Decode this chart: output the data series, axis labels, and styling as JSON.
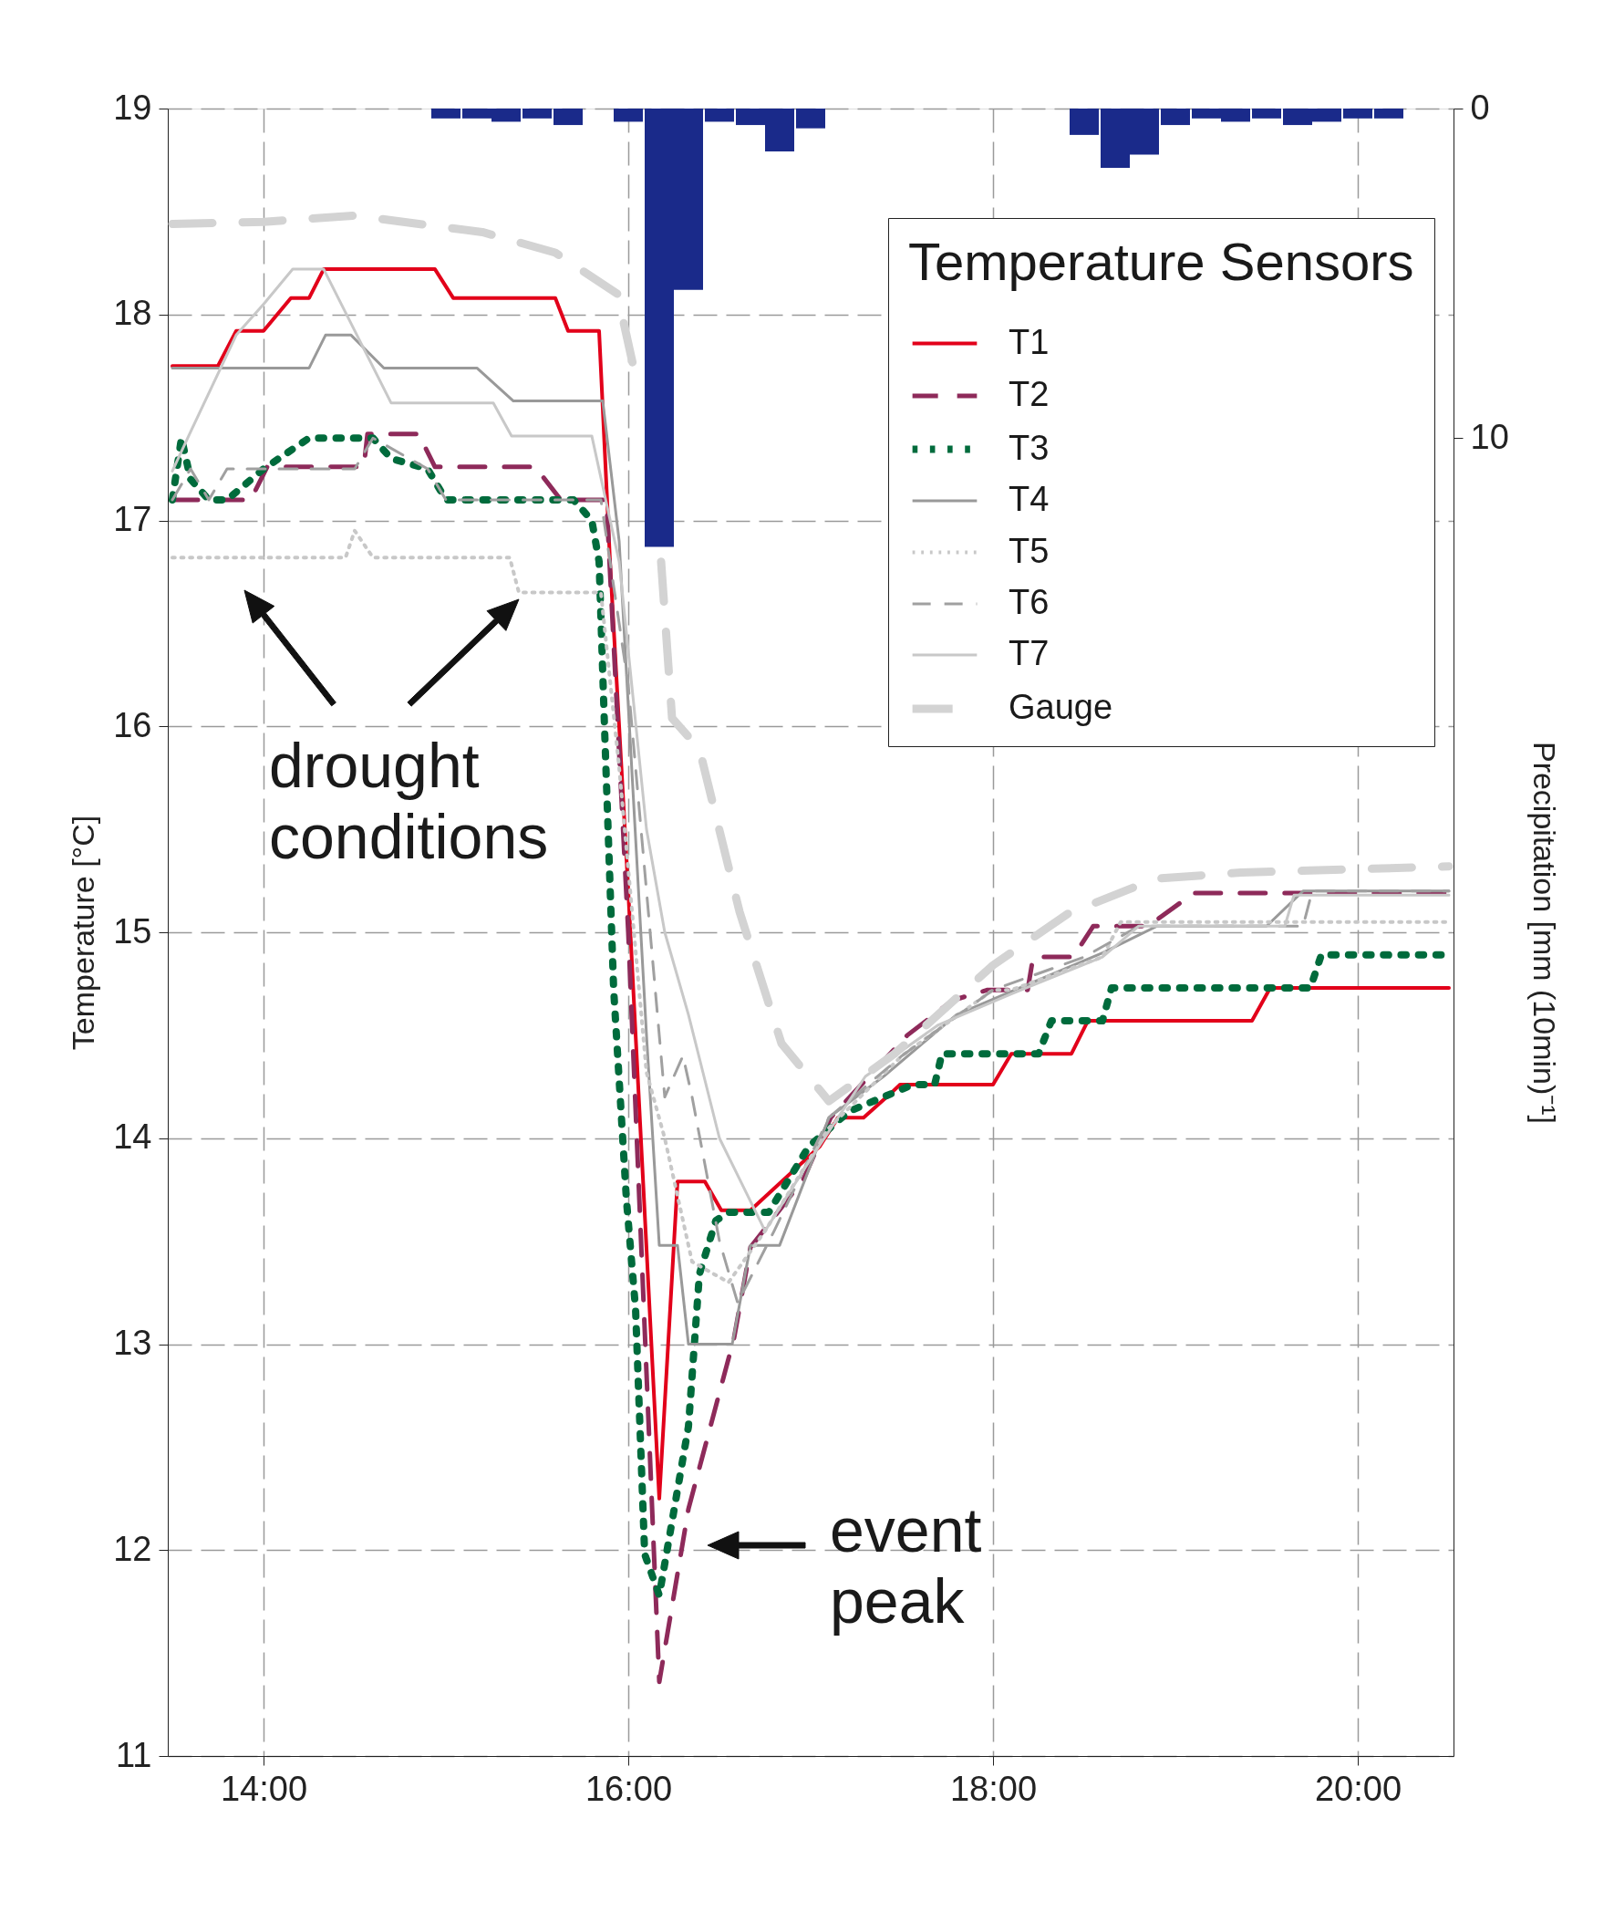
{
  "chart_data": {
    "type": "line",
    "legend_title": "Temperature Sensors",
    "ylabel": "Temperature [°C]",
    "y2label": "Precipitation [mm (10min)⁻¹]",
    "xlim": [
      13.5,
      20.5
    ],
    "xticks": [
      {
        "value": 14,
        "label": "14:00"
      },
      {
        "value": 16,
        "label": "16:00"
      },
      {
        "value": 18,
        "label": "18:00"
      },
      {
        "value": 20,
        "label": "20:00"
      }
    ],
    "ylim": [
      11,
      19
    ],
    "yticks": [
      11,
      12,
      13,
      14,
      15,
      16,
      17,
      18,
      19
    ],
    "y2lim": [
      50,
      0
    ],
    "y2ticks": [
      0,
      10
    ],
    "grid": true,
    "legend": "top right",
    "annotations": [
      "drought conditions",
      "event peak"
    ],
    "series": [
      {
        "name": "T1",
        "color": "#e2001a",
        "line_style": "solid",
        "x": [
          13.5,
          13.75,
          13.85,
          14.0,
          14.15,
          14.25,
          14.33,
          14.94,
          15.04,
          15.6,
          15.67,
          15.84,
          15.9,
          16.0,
          16.17,
          16.27,
          16.42,
          16.51,
          16.67,
          17.05,
          17.15,
          17.29,
          17.43,
          17.49,
          18.0,
          18.1,
          18.43,
          18.52,
          19.42,
          19.52,
          20.5
        ],
        "values": [
          17.75,
          17.75,
          17.92,
          17.92,
          18.08,
          18.08,
          18.22,
          18.22,
          18.08,
          18.08,
          17.92,
          17.92,
          16.8,
          15.2,
          12.25,
          13.79,
          13.79,
          13.65,
          13.65,
          13.96,
          14.1,
          14.1,
          14.21,
          14.26,
          14.26,
          14.41,
          14.41,
          14.57,
          14.57,
          14.73,
          14.73
        ]
      },
      {
        "name": "T2",
        "color": "#8e2a5a",
        "line_style": "dashed",
        "x": [
          13.5,
          13.93,
          14.02,
          14.55,
          14.57,
          14.85,
          14.94,
          15.49,
          15.63,
          15.88,
          16.0,
          16.17,
          16.33,
          16.58,
          16.67,
          16.96,
          17.11,
          17.53,
          17.78,
          17.97,
          18.19,
          18.22,
          18.44,
          18.55,
          18.85,
          19.1,
          20.5
        ],
        "values": [
          17.1,
          17.1,
          17.26,
          17.26,
          17.42,
          17.42,
          17.26,
          17.26,
          17.1,
          17.1,
          15.0,
          11.36,
          12.2,
          13.03,
          13.47,
          13.8,
          14.1,
          14.5,
          14.67,
          14.72,
          14.72,
          14.88,
          14.88,
          15.03,
          15.03,
          15.19,
          15.19
        ]
      },
      {
        "name": "T3",
        "color": "#006b3c",
        "line_style": "dotted",
        "x": [
          13.5,
          13.55,
          13.6,
          13.7,
          13.8,
          14.0,
          14.25,
          14.6,
          14.7,
          14.9,
          15.0,
          15.7,
          15.8,
          15.84,
          15.87,
          15.92,
          15.99,
          16.04,
          16.09,
          16.17,
          16.33,
          16.39,
          16.48,
          16.55,
          16.77,
          16.99,
          17.21,
          17.56,
          17.68,
          17.72,
          18.25,
          18.32,
          18.6,
          18.65,
          19.74,
          19.8,
          20.5
        ],
        "values": [
          17.1,
          17.4,
          17.2,
          17.1,
          17.1,
          17.25,
          17.4,
          17.4,
          17.3,
          17.25,
          17.1,
          17.1,
          17.0,
          16.8,
          15.99,
          14.72,
          13.7,
          13.17,
          11.98,
          11.78,
          12.6,
          13.34,
          13.6,
          13.64,
          13.64,
          13.96,
          14.13,
          14.26,
          14.26,
          14.41,
          14.41,
          14.57,
          14.57,
          14.73,
          14.73,
          14.89,
          14.89
        ]
      },
      {
        "name": "T4",
        "color": "#999999",
        "line_style": "solid",
        "x": [
          13.5,
          14.25,
          14.34,
          14.48,
          14.66,
          15.17,
          15.37,
          15.86,
          15.95,
          16.1,
          16.17,
          16.27,
          16.33,
          16.57,
          16.67,
          16.83,
          17.1,
          17.4,
          17.8,
          18.2,
          18.6,
          18.9,
          19.5,
          19.7,
          20.5
        ],
        "values": [
          17.74,
          17.74,
          17.9,
          17.9,
          17.74,
          17.74,
          17.58,
          17.58,
          16.9,
          14.5,
          13.48,
          13.48,
          13.0,
          13.0,
          13.48,
          13.48,
          14.1,
          14.3,
          14.6,
          14.75,
          14.9,
          15.03,
          15.03,
          15.2,
          15.2
        ]
      },
      {
        "name": "T5",
        "color": "#c8c8c8",
        "line_style": "dotted",
        "x": [
          13.5,
          14.45,
          14.5,
          14.6,
          15.35,
          15.4,
          15.85,
          15.95,
          16.1,
          16.2,
          16.35,
          16.55,
          16.75,
          17.1,
          17.5,
          18.0,
          18.1,
          18.6,
          18.7,
          20.5
        ],
        "values": [
          16.82,
          16.82,
          16.95,
          16.82,
          16.82,
          16.65,
          16.65,
          15.8,
          14.32,
          14.0,
          13.4,
          13.3,
          13.55,
          14.05,
          14.4,
          14.72,
          14.72,
          14.88,
          15.05,
          15.05
        ]
      },
      {
        "name": "T6",
        "color": "#a0a0a0",
        "line_style": "dashed",
        "x": [
          13.5,
          13.6,
          13.7,
          13.8,
          14.0,
          14.5,
          14.6,
          14.9,
          15.0,
          15.85,
          16.0,
          16.2,
          16.3,
          16.35,
          16.5,
          16.6,
          16.8,
          17.1,
          17.5,
          18.0,
          18.5,
          18.8,
          19.7,
          19.75,
          20.5
        ],
        "values": [
          17.1,
          17.25,
          17.1,
          17.25,
          17.25,
          17.25,
          17.4,
          17.25,
          17.1,
          17.1,
          16.2,
          14.2,
          14.4,
          14.2,
          13.5,
          13.2,
          13.55,
          14.1,
          14.4,
          14.72,
          14.88,
          15.03,
          15.03,
          15.2,
          15.2
        ]
      },
      {
        "name": "T7",
        "color": "#c8c8c8",
        "line_style": "solid",
        "x": [
          13.5,
          13.6,
          13.85,
          14.0,
          14.16,
          14.33,
          14.7,
          15.26,
          15.36,
          15.8,
          15.95,
          16.1,
          16.2,
          16.33,
          16.5,
          16.75,
          17.0,
          17.3,
          17.7,
          18.1,
          18.6,
          18.8,
          19.6,
          19.65,
          20.5
        ],
        "values": [
          17.24,
          17.43,
          17.9,
          18.05,
          18.22,
          18.22,
          17.57,
          17.57,
          17.41,
          17.41,
          16.8,
          15.5,
          15.0,
          14.6,
          14.0,
          13.55,
          13.9,
          14.3,
          14.55,
          14.7,
          14.88,
          15.03,
          15.03,
          15.18,
          15.18
        ]
      },
      {
        "name": "Gauge",
        "color": "#d3d3d3",
        "line_style": "dashed",
        "x": [
          13.5,
          14.0,
          14.5,
          15.2,
          15.6,
          15.94,
          16.04,
          16.13,
          16.18,
          16.24,
          16.39,
          16.61,
          16.84,
          17.1,
          17.46,
          18.0,
          18.41,
          18.89,
          19.36,
          20.5
        ],
        "values": [
          18.44,
          18.45,
          18.48,
          18.4,
          18.3,
          18.1,
          17.7,
          null,
          16.8,
          16.04,
          15.89,
          15.1,
          14.46,
          14.18,
          14.41,
          14.84,
          15.09,
          15.26,
          15.29,
          15.32
        ]
      },
      {
        "type": "bar",
        "axis": "y2",
        "color": "#1a2a8a",
        "x": [
          15.0,
          15.17,
          15.33,
          15.5,
          15.67,
          16.0,
          16.17,
          16.33,
          16.5,
          16.67,
          16.83,
          17.0,
          18.5,
          18.67,
          18.83,
          19.0,
          19.17,
          19.33,
          19.5,
          19.67,
          19.83,
          20.0,
          20.17
        ],
        "values": [
          0.3,
          0.3,
          0.4,
          0.3,
          0.5,
          0.4,
          13.3,
          5.5,
          0.4,
          0.5,
          1.3,
          0.6,
          0.8,
          1.8,
          1.4,
          0.5,
          0.3,
          0.4,
          0.3,
          0.5,
          0.4,
          0.3,
          0.3
        ]
      }
    ]
  }
}
